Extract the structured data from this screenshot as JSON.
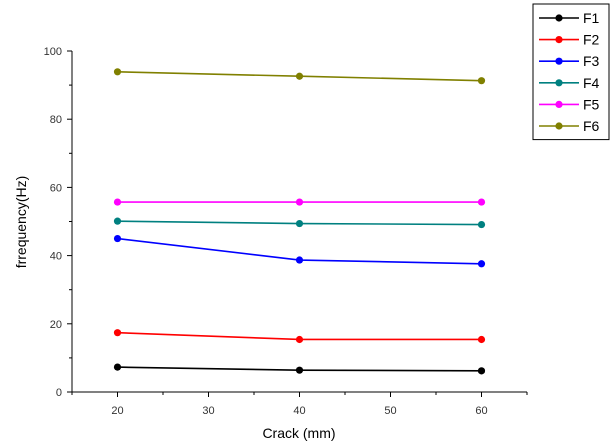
{
  "chart_data": {
    "type": "line",
    "title": "",
    "xlabel": "Crack (mm)",
    "ylabel": "frrequency(Hz)",
    "xlim": [
      15,
      65
    ],
    "ylim": [
      0,
      100
    ],
    "x_ticks": [
      20,
      30,
      40,
      50,
      60
    ],
    "y_ticks": [
      0,
      20,
      40,
      60,
      80,
      100
    ],
    "x": [
      20,
      40,
      60
    ],
    "grid": false,
    "legend_position": "top-right",
    "series": [
      {
        "name": "F1",
        "color": "#000000",
        "values": [
          7.3,
          6.4,
          6.2
        ]
      },
      {
        "name": "F2",
        "color": "#ff0000",
        "values": [
          17.4,
          15.4,
          15.4
        ]
      },
      {
        "name": "F3",
        "color": "#0000ff",
        "values": [
          45.0,
          38.7,
          37.6
        ]
      },
      {
        "name": "F4",
        "color": "#008080",
        "values": [
          50.1,
          49.4,
          49.1
        ]
      },
      {
        "name": "F5",
        "color": "#ff00ff",
        "values": [
          55.7,
          55.7,
          55.7
        ]
      },
      {
        "name": "F6",
        "color": "#808000",
        "values": [
          93.9,
          92.6,
          91.3
        ]
      }
    ]
  }
}
